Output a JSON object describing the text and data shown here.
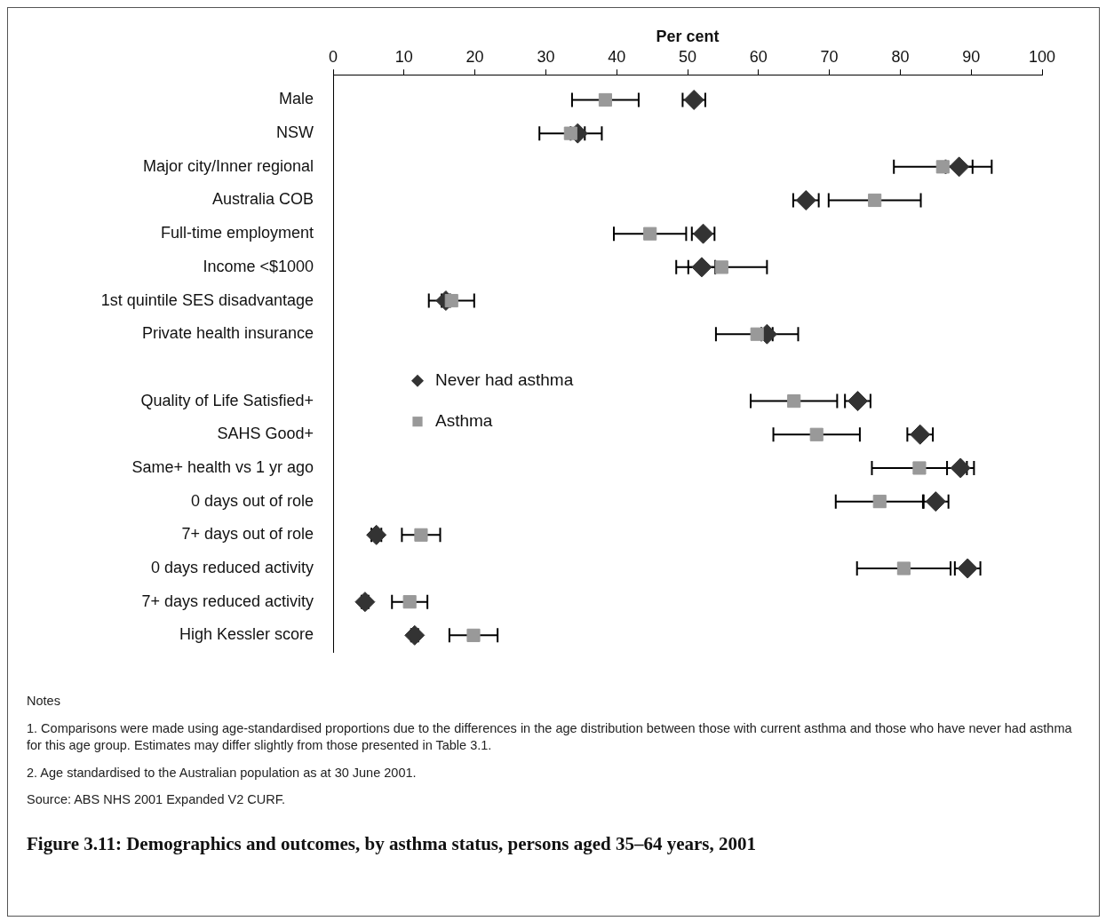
{
  "chart_data": {
    "type": "scatter",
    "orientation": "horizontal",
    "title": "Figure 3.11: Demographics and outcomes, by asthma status, persons aged 35–64 years, 2001",
    "xlabel": "Per cent",
    "categories": [
      "Male",
      "NSW",
      "Major city/Inner regional",
      "Australia COB",
      "Full-time employment",
      "Income <$1000",
      "1st quintile SES disadvantage",
      "Private health insurance",
      null,
      "Quality of Life Satisfied+",
      "SAHS Good+",
      "Same+ health vs 1 yr ago",
      "0 days out of role",
      "7+ days out of role",
      "0 days reduced activity",
      "7+ days reduced activity",
      "High Kessler score"
    ],
    "series": [
      {
        "name": "Never had asthma",
        "color": "#333333",
        "marker": "diamond",
        "values": [
          50.9,
          34.5,
          88.3,
          66.7,
          52.2,
          52.0,
          15.9,
          61.2,
          null,
          74.0,
          82.8,
          88.5,
          85.0,
          6.1,
          89.5,
          4.5,
          11.5
        ],
        "errors": [
          1.6,
          1.0,
          1.9,
          1.8,
          1.6,
          1.9,
          0.6,
          0.8,
          null,
          1.8,
          1.8,
          1.9,
          1.8,
          0.7,
          1.8,
          0.5,
          0.5
        ]
      },
      {
        "name": "Asthma",
        "color": "#999999",
        "marker": "square",
        "values": [
          38.4,
          33.5,
          86.0,
          76.4,
          44.7,
          54.8,
          16.7,
          59.8,
          null,
          65.0,
          68.2,
          82.7,
          77.1,
          12.4,
          80.5,
          10.8,
          19.8
        ],
        "errors": [
          4.7,
          4.4,
          6.9,
          6.5,
          5.1,
          6.4,
          3.2,
          5.8,
          null,
          6.1,
          6.1,
          6.7,
          6.2,
          2.7,
          6.6,
          2.5,
          3.4
        ]
      }
    ],
    "xlim": [
      0,
      100
    ],
    "xticks": [
      0,
      10,
      20,
      30,
      40,
      50,
      60,
      70,
      80,
      90,
      100
    ],
    "legend": "left",
    "grid": false,
    "annotations": [
      "Notes",
      "1. Comparisons were made using age-standardised proportions due to the differences in the age distribution between those with current asthma and those who have never had asthma for this age group. Estimates may differ slightly from those presented in Table 3.1.",
      "2. Age standardised to the Australian population as at 30 June 2001.",
      "Source: ABS NHS 2001 Expanded V2 CURF."
    ]
  }
}
